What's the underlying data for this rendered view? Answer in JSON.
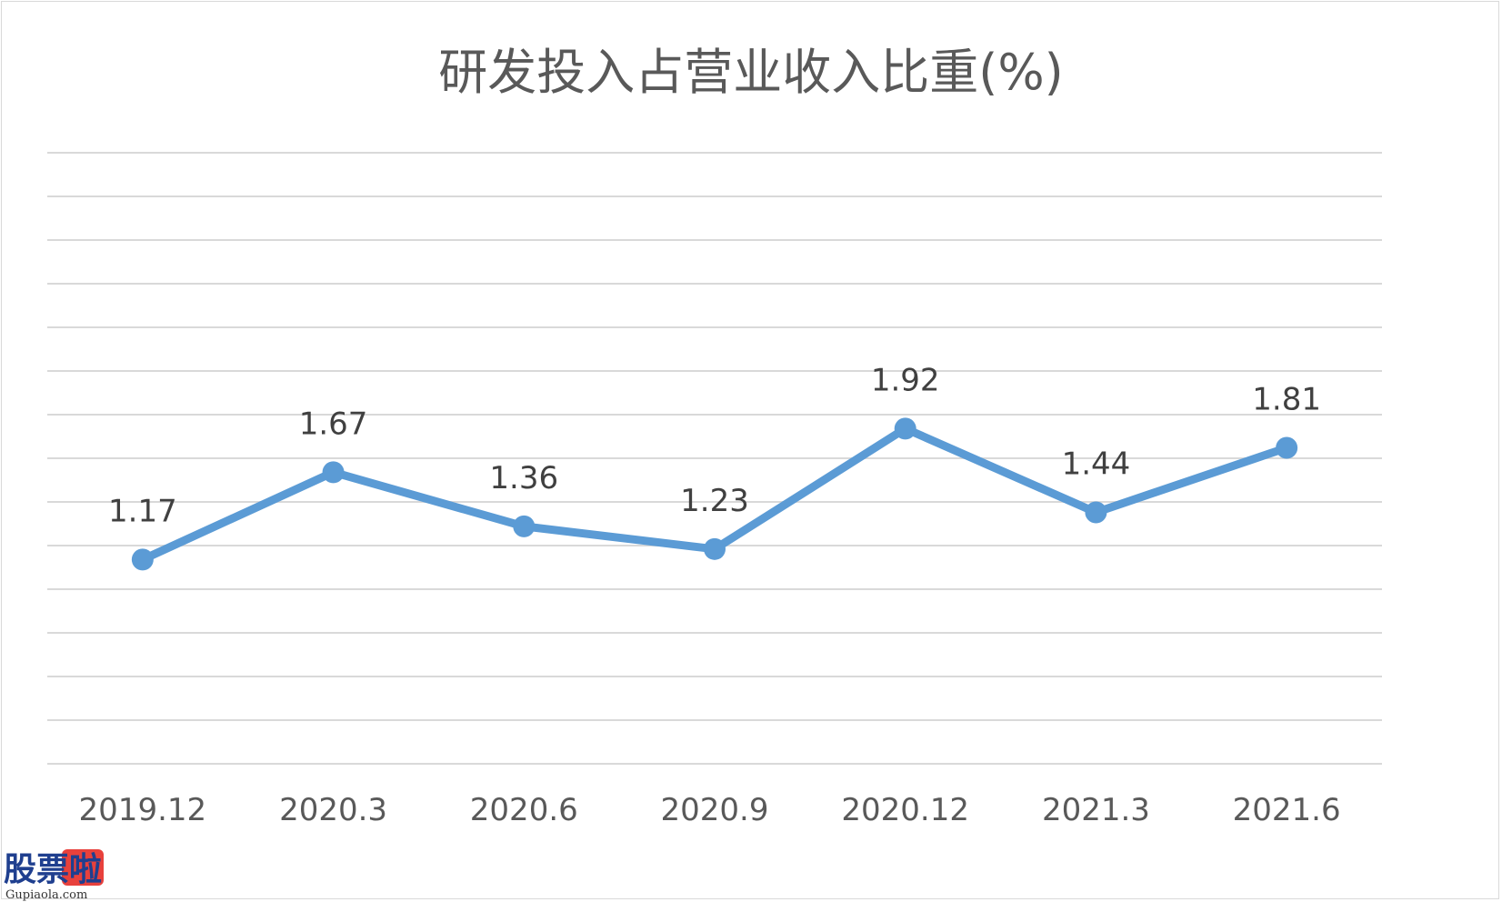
{
  "chart_data": {
    "type": "line",
    "title": "研发投入占营业收入比重(%)",
    "categories": [
      "2019.12",
      "2020.3",
      "2020.6",
      "2020.9",
      "2020.12",
      "2021.3",
      "2021.6"
    ],
    "series": [
      {
        "values": [
          1.17,
          1.67,
          1.36,
          1.23,
          1.92,
          1.44,
          1.81
        ]
      }
    ],
    "data_labels": [
      "1.17",
      "1.67",
      "1.36",
      "1.23",
      "1.92",
      "1.44",
      "1.81"
    ],
    "ylim": [
      0,
      3.5
    ],
    "grid": true,
    "legend": "none",
    "line_color": "#5b9bd5",
    "grid_color": "#d9d9d9"
  },
  "watermark": {
    "logo_text": "股票啦",
    "site": "Gupiaola.com"
  }
}
